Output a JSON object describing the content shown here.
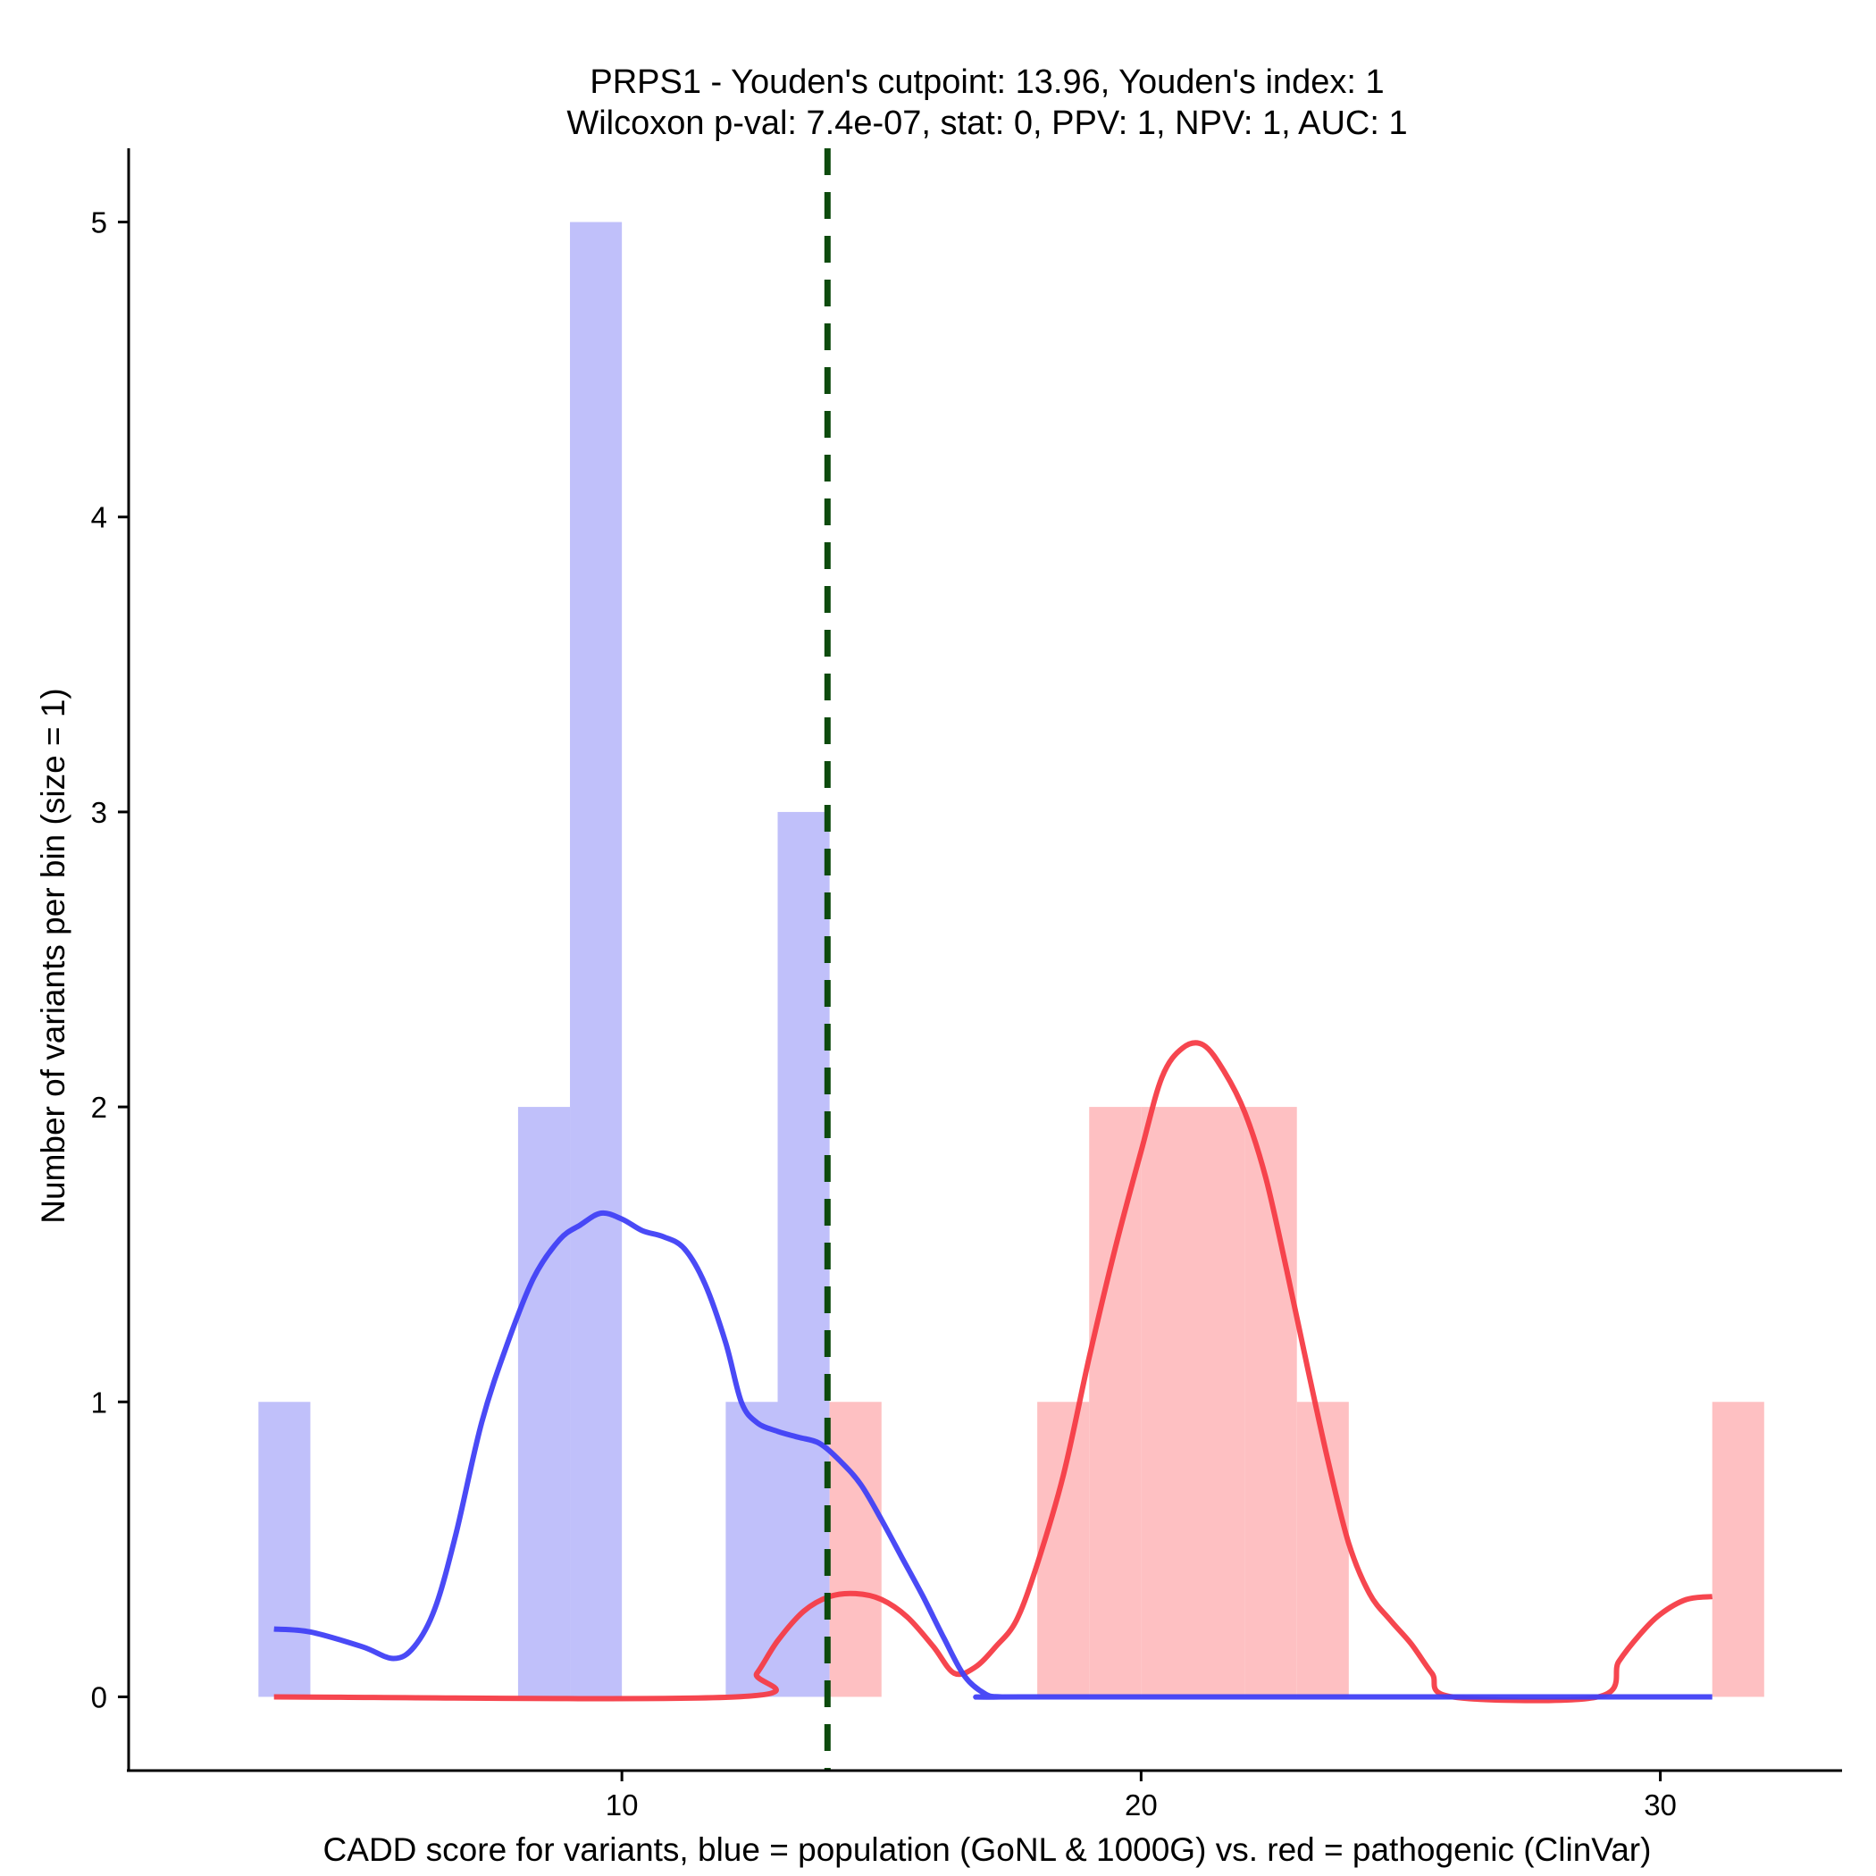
{
  "chart_data": {
    "type": "histogram",
    "title_line1": "PRPS1 - Youden's cutpoint: 13.96, Youden's index: 1",
    "title_line2": "Wilcoxon p-val: 7.4e-07, stat: 0, PPV: 1, NPV: 1, AUC: 1",
    "xlabel": "CADD score for variants, blue = population (GoNL & 1000G) vs. red = pathogenic (ClinVar)",
    "ylabel": "Number of variants per bin (size = 1)",
    "xlim": [
      0.5,
      33.5
    ],
    "ylim": [
      -0.25,
      5.25
    ],
    "x_ticks": [
      10,
      20,
      30
    ],
    "y_ticks": [
      0,
      1,
      2,
      3,
      4,
      5
    ],
    "cutpoint": 13.96,
    "colors": {
      "population_fill": "#c0c0fa",
      "pathogenic_fill": "#fec0c2",
      "population_line": "#4040f5",
      "pathogenic_line": "#f53c46",
      "cutpoint_line": "#0d4a0d"
    },
    "population_bins": [
      {
        "start": 3,
        "end": 4,
        "count": 1
      },
      {
        "start": 8,
        "end": 9,
        "count": 2
      },
      {
        "start": 9,
        "end": 10,
        "count": 5
      },
      {
        "start": 12,
        "end": 13,
        "count": 1
      },
      {
        "start": 13,
        "end": 14,
        "count": 3
      }
    ],
    "pathogenic_bins": [
      {
        "start": 14,
        "end": 15,
        "count": 1
      },
      {
        "start": 18,
        "end": 19,
        "count": 1
      },
      {
        "start": 19,
        "end": 20,
        "count": 2
      },
      {
        "start": 20,
        "end": 21,
        "count": 2
      },
      {
        "start": 21,
        "end": 22,
        "count": 2
      },
      {
        "start": 22,
        "end": 23,
        "count": 2
      },
      {
        "start": 23,
        "end": 24,
        "count": 1
      },
      {
        "start": 31,
        "end": 32,
        "count": 1
      }
    ],
    "population_density": [
      [
        3.3,
        0.23
      ],
      [
        4.0,
        0.22
      ],
      [
        5.0,
        0.17
      ],
      [
        5.6,
        0.13
      ],
      [
        6.0,
        0.17
      ],
      [
        6.4,
        0.3
      ],
      [
        6.8,
        0.55
      ],
      [
        7.3,
        0.93
      ],
      [
        7.8,
        1.2
      ],
      [
        8.3,
        1.42
      ],
      [
        8.8,
        1.55
      ],
      [
        9.2,
        1.6
      ],
      [
        9.6,
        1.64
      ],
      [
        10.0,
        1.62
      ],
      [
        10.4,
        1.58
      ],
      [
        10.8,
        1.56
      ],
      [
        11.2,
        1.52
      ],
      [
        11.6,
        1.4
      ],
      [
        12.0,
        1.2
      ],
      [
        12.3,
        1.0
      ],
      [
        12.6,
        0.93
      ],
      [
        13.0,
        0.9
      ],
      [
        13.4,
        0.88
      ],
      [
        13.8,
        0.86
      ],
      [
        14.2,
        0.8
      ],
      [
        14.6,
        0.72
      ],
      [
        15.0,
        0.6
      ],
      [
        15.4,
        0.47
      ],
      [
        15.8,
        0.34
      ],
      [
        16.2,
        0.2
      ],
      [
        16.6,
        0.07
      ],
      [
        17.0,
        0.01
      ],
      [
        17.3,
        0.0
      ],
      [
        18.0,
        0.0
      ],
      [
        31.0,
        0.0
      ]
    ],
    "pathogenic_density": [
      [
        3.3,
        0.0
      ],
      [
        12.2,
        0.0
      ],
      [
        12.6,
        0.08
      ],
      [
        13.0,
        0.19
      ],
      [
        13.5,
        0.29
      ],
      [
        14.0,
        0.34
      ],
      [
        14.5,
        0.35
      ],
      [
        15.0,
        0.33
      ],
      [
        15.5,
        0.27
      ],
      [
        16.0,
        0.17
      ],
      [
        16.4,
        0.08
      ],
      [
        16.8,
        0.1
      ],
      [
        17.2,
        0.17
      ],
      [
        17.6,
        0.26
      ],
      [
        18.0,
        0.45
      ],
      [
        18.5,
        0.75
      ],
      [
        19.0,
        1.15
      ],
      [
        19.5,
        1.52
      ],
      [
        20.0,
        1.85
      ],
      [
        20.4,
        2.1
      ],
      [
        20.8,
        2.2
      ],
      [
        21.2,
        2.21
      ],
      [
        21.6,
        2.12
      ],
      [
        22.0,
        1.98
      ],
      [
        22.4,
        1.76
      ],
      [
        22.8,
        1.45
      ],
      [
        23.2,
        1.12
      ],
      [
        23.6,
        0.8
      ],
      [
        24.0,
        0.52
      ],
      [
        24.4,
        0.35
      ],
      [
        24.8,
        0.26
      ],
      [
        25.2,
        0.18
      ],
      [
        25.6,
        0.08
      ],
      [
        26.0,
        0.0
      ],
      [
        28.8,
        0.0
      ],
      [
        29.2,
        0.12
      ],
      [
        29.6,
        0.21
      ],
      [
        30.0,
        0.28
      ],
      [
        30.5,
        0.33
      ],
      [
        31.0,
        0.34
      ]
    ]
  }
}
